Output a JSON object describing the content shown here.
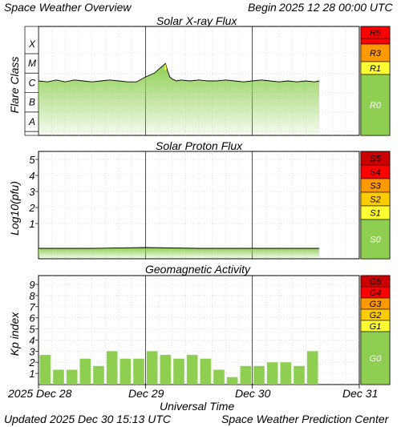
{
  "header": {
    "title": "Space Weather Overview",
    "begin_label": "Begin",
    "begin_value": "2025 12 28 00:00 UTC"
  },
  "footer": {
    "updated_label": "Updated",
    "updated_value": "2025 Dec 30 15:13 UTC",
    "source": "Space Weather Prediction Center"
  },
  "x_axis": {
    "label": "Universal Time",
    "ticks": [
      "2025 Dec 28",
      "Dec 29",
      "Dec 30",
      "Dec 31"
    ]
  },
  "colors": {
    "fill": "#8ecf52",
    "line": "#000000",
    "grid": "#c8c8c8",
    "scale_red_dark": "#cc0000",
    "scale_red": "#ff0000",
    "scale_orange": "#ff9900",
    "scale_yellow": "#ffcc00",
    "scale_lightyellow": "#ffff33",
    "scale_green": "#8ecf52"
  },
  "chart_data": [
    {
      "type": "area",
      "title": "Solar X-ray Flux",
      "ylabel": "Flare Class",
      "classes": [
        "X",
        "M",
        "C",
        "B",
        "A"
      ],
      "scale": [
        {
          "label": "R5",
          "color": "#ff0000"
        },
        {
          "label": "R3",
          "color": "#ff9900"
        },
        {
          "label": "R1",
          "color": "#ffff33"
        },
        {
          "label": "R0",
          "color": "#8ecf52"
        }
      ],
      "x_hours": [
        0,
        2,
        4,
        6,
        8,
        10,
        12,
        14,
        16,
        18,
        20,
        22,
        24,
        26,
        28,
        28.5,
        29,
        29.5,
        30,
        31,
        32,
        34,
        36,
        38,
        40,
        42,
        44,
        46,
        48,
        50,
        52,
        54,
        56,
        58,
        60,
        62,
        63
      ],
      "log_flux": [
        -5.8,
        -5.85,
        -5.75,
        -5.85,
        -5.75,
        -5.8,
        -5.85,
        -5.8,
        -5.75,
        -5.8,
        -5.85,
        -5.85,
        -5.6,
        -5.4,
        -5.0,
        -4.9,
        -5.3,
        -5.6,
        -5.7,
        -5.8,
        -5.75,
        -5.8,
        -5.75,
        -5.8,
        -5.8,
        -5.75,
        -5.8,
        -5.85,
        -5.8,
        -5.75,
        -5.8,
        -5.85,
        -5.8,
        -5.85,
        -5.8,
        -5.85,
        -5.8
      ]
    },
    {
      "type": "area",
      "title": "Solar Proton Flux",
      "ylabel": "Log10(pfu)",
      "yticks": [
        "5",
        "4",
        "3",
        "2",
        "1"
      ],
      "scale": [
        {
          "label": "S5",
          "color": "#cc0000"
        },
        {
          "label": "S4",
          "color": "#ff0000"
        },
        {
          "label": "S3",
          "color": "#ff9900"
        },
        {
          "label": "S2",
          "color": "#ffcc00"
        },
        {
          "label": "S1",
          "color": "#ffff33"
        },
        {
          "label": "S0",
          "color": "#8ecf52"
        }
      ],
      "x_hours": [
        0,
        12,
        24,
        36,
        48,
        60,
        63
      ],
      "values": [
        -0.55,
        -0.55,
        -0.5,
        -0.55,
        -0.55,
        -0.55,
        -0.55
      ]
    },
    {
      "type": "bar",
      "title": "Geomagnetic Activity",
      "ylabel": "Kp index",
      "yticks": [
        "9",
        "8",
        "7",
        "6",
        "5",
        "4",
        "3",
        "2",
        "1"
      ],
      "ylim": [
        0,
        9
      ],
      "scale": [
        {
          "label": "G5",
          "color": "#cc0000"
        },
        {
          "label": "G4",
          "color": "#ff0000"
        },
        {
          "label": "G3",
          "color": "#ff9900"
        },
        {
          "label": "G2",
          "color": "#ffcc00"
        },
        {
          "label": "G1",
          "color": "#ffff33"
        },
        {
          "label": "G0",
          "color": "#8ecf52"
        }
      ],
      "bar_hours": 3,
      "values": [
        2.67,
        1.33,
        1.33,
        2.33,
        1.67,
        3.0,
        2.33,
        2.33,
        3.0,
        2.67,
        2.33,
        2.67,
        2.33,
        1.33,
        0.67,
        1.67,
        1.67,
        2.0,
        2.0,
        1.67,
        3.0
      ]
    }
  ]
}
